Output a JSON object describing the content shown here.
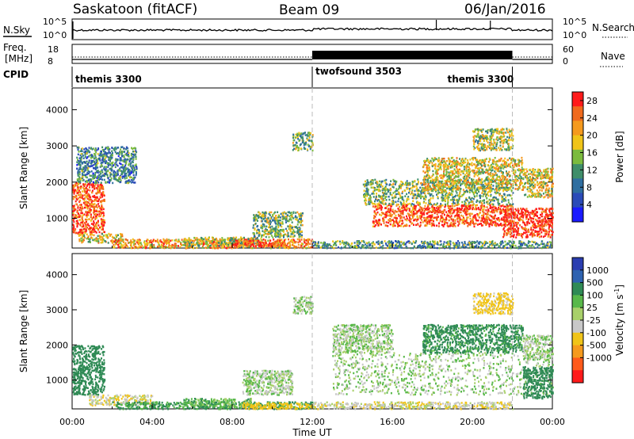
{
  "header": {
    "station": "Saskatoon (fitACF)",
    "beam": "Beam 09",
    "date": "06/Jan/2016"
  },
  "labels": {
    "nsky": "N.Sky",
    "freq": "Freq.",
    "freq_unit": "[MHz]",
    "cpid": "CPID",
    "nsearch": "N.Search",
    "nave": "Nave",
    "nsky_tick_hi": "10^5",
    "nsky_tick_lo": "10^0",
    "freq_tick_hi": "18",
    "freq_tick_lo": "8",
    "nave_tick_hi": "60",
    "nave_tick_lo": "0"
  },
  "cpid": [
    {
      "name": "themis 3300",
      "start_h": 0,
      "end_h": 12
    },
    {
      "name": "twofsound 3503",
      "start_h": 12,
      "end_h": 22
    },
    {
      "name": "themis 3300",
      "start_h": 22,
      "end_h": 24
    }
  ],
  "chart_data": [
    {
      "type": "heatmap",
      "panel": "power",
      "ylabel": "Slant Range [km]",
      "xlabel": "Time UT",
      "x_ticks": [
        "00:00",
        "04:00",
        "08:00",
        "12:00",
        "16:00",
        "20:00",
        "00:00"
      ],
      "y_ticks": [
        1000,
        2000,
        3000,
        4000
      ],
      "ylim": [
        180,
        4600
      ],
      "xlim_hours": [
        0,
        24
      ],
      "colorbar": {
        "label": "Power [dB]",
        "ticks": [
          4,
          8,
          12,
          16,
          20,
          24,
          28
        ],
        "range": [
          0,
          30
        ],
        "colors": [
          "#1a1aff",
          "#2b4bb8",
          "#2f6ea0",
          "#3f8e6a",
          "#7bbb3e",
          "#f0c419",
          "#f59a1e",
          "#f06a1d",
          "#ff1a1a"
        ]
      },
      "regions": [
        {
          "t": [
            0.0,
            1.6
          ],
          "r": [
            600,
            2000
          ],
          "p": 26
        },
        {
          "t": [
            0.3,
            2.5
          ],
          "r": [
            350,
            600
          ],
          "p": 18
        },
        {
          "t": [
            2.0,
            12.0
          ],
          "r": [
            200,
            450
          ],
          "p": 22
        },
        {
          "t": [
            5.5,
            9.5
          ],
          "r": [
            250,
            500
          ],
          "p": 16
        },
        {
          "t": [
            8.0,
            10.5
          ],
          "r": [
            250,
            420
          ],
          "p": 28
        },
        {
          "t": [
            9.0,
            11.5
          ],
          "r": [
            500,
            1200
          ],
          "p": 14
        },
        {
          "t": [
            0.2,
            3.2
          ],
          "r": [
            2000,
            3000
          ],
          "p": 10
        },
        {
          "t": [
            11.0,
            12.0
          ],
          "r": [
            2900,
            3400
          ],
          "p": 14
        },
        {
          "t": [
            12.0,
            24.0
          ],
          "r": [
            200,
            400
          ],
          "p": 12
        },
        {
          "t": [
            15.0,
            22.0
          ],
          "r": [
            800,
            1400
          ],
          "p": 26
        },
        {
          "t": [
            14.5,
            22.0
          ],
          "r": [
            1400,
            2100
          ],
          "p": 14
        },
        {
          "t": [
            17.5,
            22.5
          ],
          "r": [
            1800,
            2700
          ],
          "p": 18
        },
        {
          "t": [
            20.0,
            22.0
          ],
          "r": [
            2900,
            3500
          ],
          "p": 16
        },
        {
          "t": [
            21.5,
            24.0
          ],
          "r": [
            500,
            1300
          ],
          "p": 28
        },
        {
          "t": [
            22.5,
            24.0
          ],
          "r": [
            1600,
            2400
          ],
          "p": 18
        }
      ]
    },
    {
      "type": "heatmap",
      "panel": "velocity",
      "ylabel": "Slant Range [km]",
      "xlabel": "Time UT",
      "x_ticks": [
        "00:00",
        "04:00",
        "08:00",
        "12:00",
        "16:00",
        "20:00",
        "00:00"
      ],
      "y_ticks": [
        1000,
        2000,
        3000,
        4000
      ],
      "ylim": [
        180,
        4600
      ],
      "xlim_hours": [
        0,
        24
      ],
      "colorbar": {
        "label": "Velocity [m s^-1]",
        "ticks": [
          "1000",
          "500",
          "100",
          "25",
          "-25",
          "-100",
          "-500",
          "-1000"
        ],
        "colors": [
          "#2a3db0",
          "#2e62b0",
          "#2f8a55",
          "#59b84a",
          "#a8d06a",
          "#c8c8c8",
          "#f0c419",
          "#f59a1e",
          "#ff5a1a",
          "#ff1a1a"
        ]
      },
      "regions": [
        {
          "t": [
            0.0,
            1.6
          ],
          "r": [
            600,
            2000
          ],
          "v": 300
        },
        {
          "t": [
            0.8,
            4.0
          ],
          "r": [
            300,
            600
          ],
          "v": -80
        },
        {
          "t": [
            2.0,
            12.0
          ],
          "r": [
            200,
            400
          ],
          "v": 120
        },
        {
          "t": [
            5.5,
            9.0
          ],
          "r": [
            250,
            500
          ],
          "v": 60
        },
        {
          "t": [
            8.5,
            12.0
          ],
          "r": [
            200,
            380
          ],
          "v": -200
        },
        {
          "t": [
            8.5,
            11.0
          ],
          "r": [
            600,
            1300
          ],
          "v": 0
        },
        {
          "t": [
            11.0,
            12.0
          ],
          "r": [
            2900,
            3400
          ],
          "v": 0
        },
        {
          "t": [
            13.0,
            24.0
          ],
          "r": [
            600,
            1800
          ],
          "v": 0
        },
        {
          "t": [
            13.0,
            16.0
          ],
          "r": [
            1800,
            2600
          ],
          "v": 0
        },
        {
          "t": [
            12.0,
            22.0
          ],
          "r": [
            200,
            400
          ],
          "v": -60
        },
        {
          "t": [
            17.5,
            22.5
          ],
          "r": [
            1800,
            2600
          ],
          "v": 150
        },
        {
          "t": [
            20.0,
            22.0
          ],
          "r": [
            2900,
            3500
          ],
          "v": -150
        },
        {
          "t": [
            22.5,
            24.0
          ],
          "r": [
            500,
            1400
          ],
          "v": 250
        },
        {
          "t": [
            22.5,
            24.0
          ],
          "r": [
            1600,
            2300
          ],
          "v": 0
        }
      ]
    }
  ]
}
